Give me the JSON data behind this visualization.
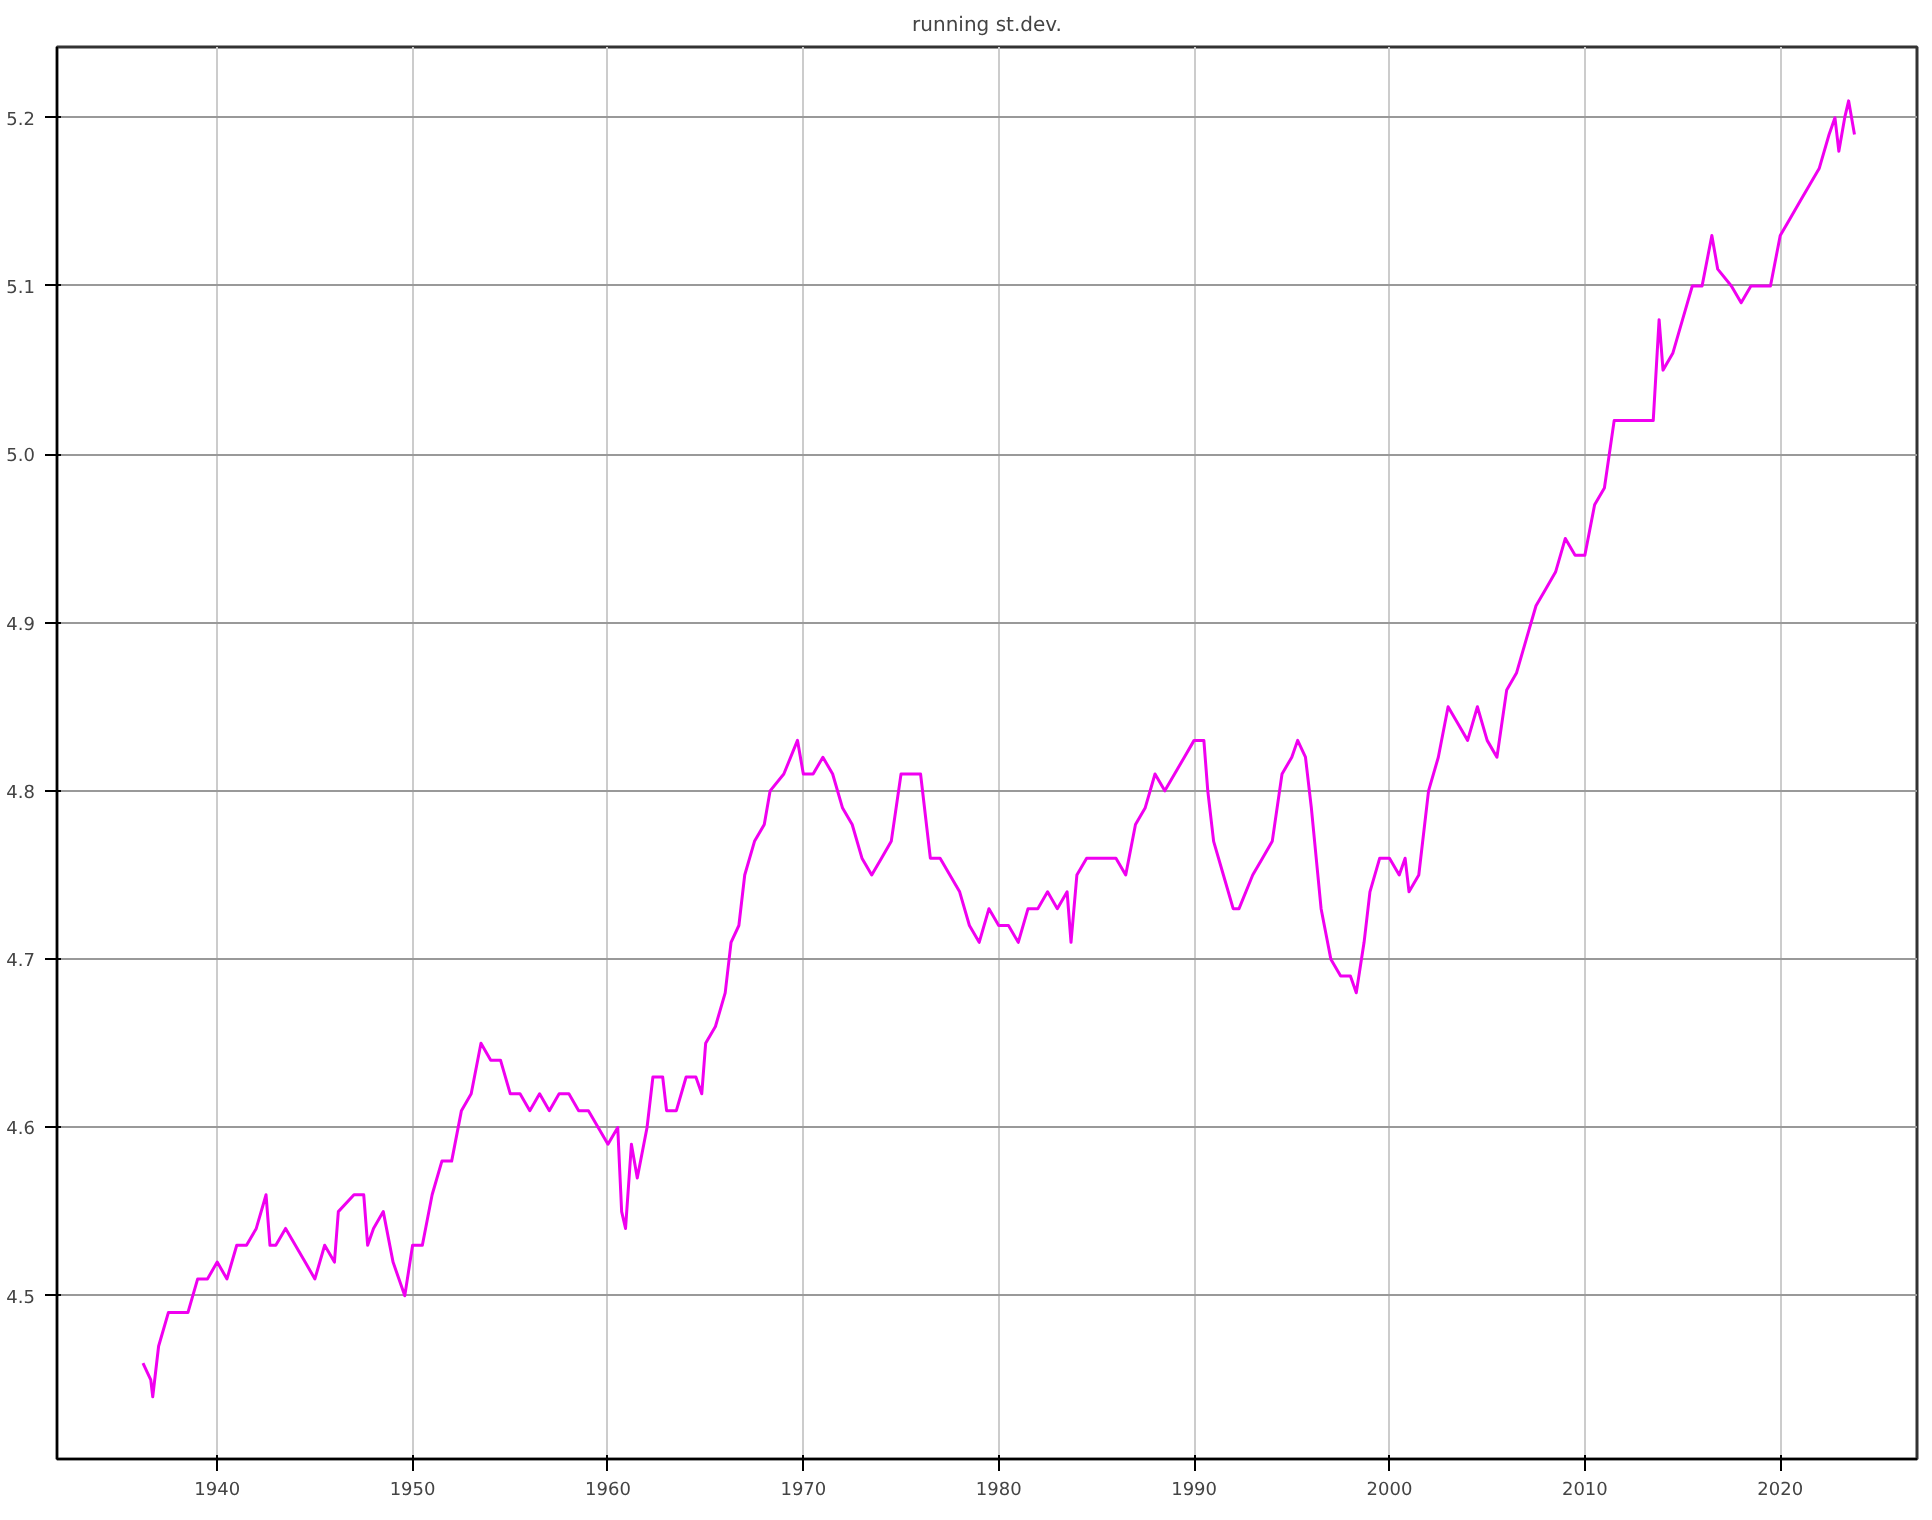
{
  "chart_data": {
    "type": "line",
    "title": "running st.dev.",
    "x": [
      1936.2,
      1936.6,
      1936.7,
      1937,
      1937.5,
      1938,
      1938.5,
      1939,
      1939.5,
      1940,
      1940.5,
      1941,
      1941.5,
      1942,
      1942.5,
      1942.7,
      1943,
      1943.5,
      1944,
      1944.5,
      1945,
      1945.5,
      1946,
      1946.2,
      1947,
      1947.5,
      1947.7,
      1948,
      1948.5,
      1949,
      1949.6,
      1950,
      1950.5,
      1951,
      1951.5,
      1952,
      1952.5,
      1953,
      1953.5,
      1954,
      1954.5,
      1955,
      1955.5,
      1956,
      1956.5,
      1957,
      1957.5,
      1958,
      1958.5,
      1959,
      1959.5,
      1960,
      1960.5,
      1960.7,
      1960.9,
      1961.2,
      1961.5,
      1962,
      1962.3,
      1962.8,
      1963,
      1963.5,
      1964,
      1964.5,
      1964.8,
      1965,
      1965.5,
      1966,
      1966.3,
      1966.7,
      1967,
      1967.5,
      1968,
      1968.3,
      1969,
      1969.7,
      1970,
      1970.5,
      1971,
      1971.5,
      1972,
      1972.5,
      1973,
      1973.5,
      1974,
      1974.5,
      1975,
      1975.5,
      1976,
      1976.5,
      1977,
      1977.5,
      1978,
      1978.5,
      1979,
      1979.5,
      1980,
      1980.5,
      1981,
      1981.5,
      1982,
      1982.5,
      1983,
      1983.5,
      1983.7,
      1984,
      1984.5,
      1985,
      1985.5,
      1986,
      1986.5,
      1987,
      1987.5,
      1988,
      1988.5,
      1989,
      1989.5,
      1990,
      1990.5,
      1990.7,
      1991,
      1991.5,
      1992,
      1992.3,
      1993,
      1993.5,
      1994,
      1994.5,
      1995,
      1995.3,
      1995.7,
      1996,
      1996.5,
      1997,
      1997.5,
      1998,
      1998.3,
      1998.7,
      1999,
      1999.5,
      2000,
      2000.5,
      2000.8,
      2001,
      2001.5,
      2002,
      2002.5,
      2003,
      2003.5,
      2004,
      2004.5,
      2005,
      2005.5,
      2006,
      2006.5,
      2007,
      2007.5,
      2008,
      2008.5,
      2009,
      2009.5,
      2010,
      2010.5,
      2011,
      2011.5,
      2012,
      2012.5,
      2013,
      2013.5,
      2013.8,
      2014,
      2014.5,
      2015,
      2015.5,
      2016,
      2016.5,
      2016.8,
      2017.5,
      2018,
      2018.5,
      2019,
      2019.5,
      2020,
      2020.5,
      2021,
      2021.5,
      2022,
      2022.5,
      2022.8,
      2023,
      2023.3,
      2023.5,
      2023.8
    ],
    "series": [
      {
        "color": "#f000f0",
        "values": [
          4.46,
          4.45,
          4.44,
          4.47,
          4.49,
          4.49,
          4.49,
          4.51,
          4.51,
          4.52,
          4.51,
          4.53,
          4.53,
          4.54,
          4.56,
          4.53,
          4.53,
          4.54,
          4.53,
          4.52,
          4.51,
          4.53,
          4.52,
          4.55,
          4.56,
          4.56,
          4.53,
          4.54,
          4.55,
          4.52,
          4.5,
          4.53,
          4.53,
          4.56,
          4.58,
          4.58,
          4.61,
          4.62,
          4.65,
          4.64,
          4.64,
          4.62,
          4.62,
          4.61,
          4.62,
          4.61,
          4.62,
          4.62,
          4.61,
          4.61,
          4.6,
          4.59,
          4.6,
          4.55,
          4.54,
          4.59,
          4.57,
          4.6,
          4.63,
          4.63,
          4.61,
          4.61,
          4.63,
          4.63,
          4.62,
          4.65,
          4.66,
          4.68,
          4.71,
          4.72,
          4.75,
          4.77,
          4.78,
          4.8,
          4.81,
          4.83,
          4.81,
          4.81,
          4.82,
          4.81,
          4.79,
          4.78,
          4.76,
          4.75,
          4.76,
          4.77,
          4.81,
          4.81,
          4.81,
          4.76,
          4.76,
          4.75,
          4.74,
          4.72,
          4.71,
          4.73,
          4.72,
          4.72,
          4.71,
          4.73,
          4.73,
          4.74,
          4.73,
          4.74,
          4.71,
          4.75,
          4.76,
          4.76,
          4.76,
          4.76,
          4.75,
          4.78,
          4.79,
          4.81,
          4.8,
          4.81,
          4.82,
          4.83,
          4.83,
          4.8,
          4.77,
          4.75,
          4.73,
          4.73,
          4.75,
          4.76,
          4.77,
          4.81,
          4.82,
          4.83,
          4.82,
          4.79,
          4.73,
          4.7,
          4.69,
          4.69,
          4.68,
          4.71,
          4.74,
          4.76,
          4.76,
          4.75,
          4.76,
          4.74,
          4.75,
          4.8,
          4.82,
          4.85,
          4.84,
          4.83,
          4.85,
          4.83,
          4.82,
          4.86,
          4.87,
          4.89,
          4.91,
          4.92,
          4.93,
          4.95,
          4.94,
          4.94,
          4.97,
          4.98,
          5.02,
          5.02,
          5.02,
          5.02,
          5.02,
          5.08,
          5.05,
          5.06,
          5.08,
          5.1,
          5.1,
          5.13,
          5.11,
          5.1,
          5.09,
          5.1,
          5.1,
          5.1,
          5.13,
          5.14,
          5.15,
          5.16,
          5.17,
          5.19,
          5.2,
          5.18,
          5.2,
          5.21,
          5.19
        ]
      }
    ],
    "xlim": [
      1931.8,
      2027
    ],
    "ylim": [
      4.403,
      5.242
    ],
    "xticks": [
      1940,
      1950,
      1960,
      1970,
      1980,
      1990,
      2000,
      2010,
      2020
    ],
    "yticks": [
      {
        "value": 4.5,
        "label": "4.5"
      },
      {
        "value": 4.6,
        "label": "4.6"
      },
      {
        "value": 4.7,
        "label": "4.7"
      },
      {
        "value": 4.8,
        "label": "4.8"
      },
      {
        "value": 4.9,
        "label": "4.9"
      },
      {
        "value": 5.0,
        "label": "5.0"
      },
      {
        "value": 5.1,
        "label": "5.1"
      },
      {
        "value": 5.2,
        "label": "5.2"
      }
    ],
    "grid": true
  }
}
